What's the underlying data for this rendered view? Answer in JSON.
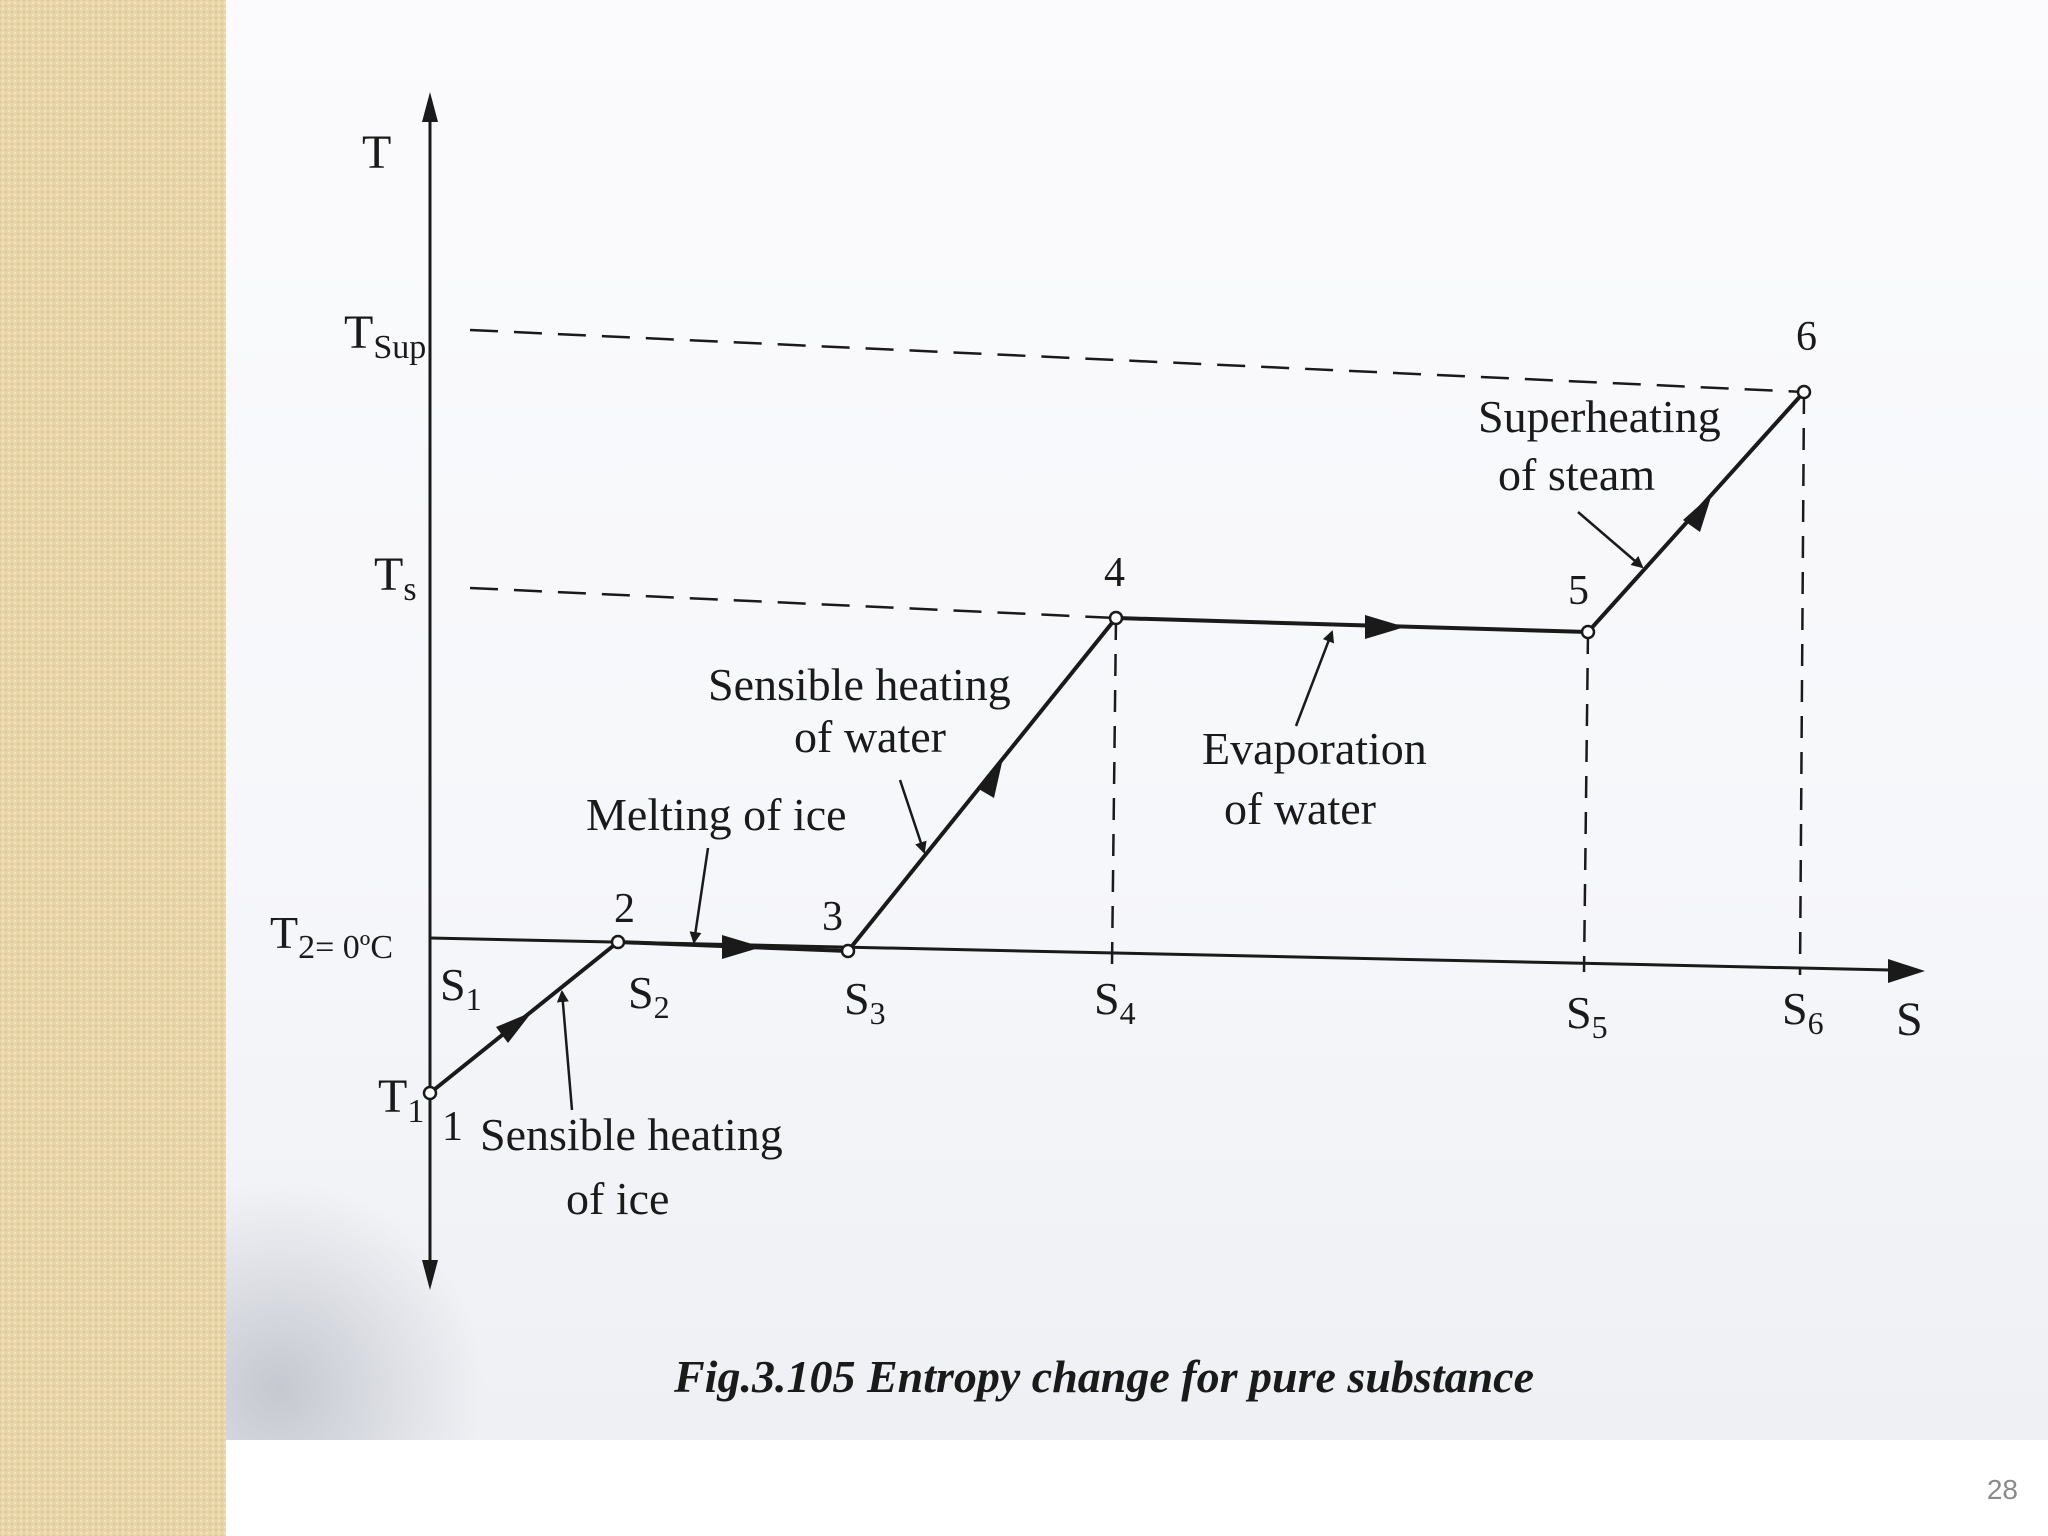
{
  "slide": {
    "page_number": "28",
    "caption": "Fig.3.105 Entropy change for pure substance"
  },
  "diagram": {
    "axes": {
      "y_label": "T",
      "x_label": "S"
    },
    "temperature_labels": {
      "t_sup": "Sup",
      "t_s": "s",
      "t_2": "2= 0ºC",
      "t_1": "1"
    },
    "points": [
      "1",
      "2",
      "3",
      "4",
      "5",
      "6"
    ],
    "entropy_labels": [
      "1",
      "2",
      "3",
      "4",
      "5",
      "6"
    ],
    "annotations": {
      "sensible_ice_line1": "Sensible heating",
      "sensible_ice_line2": "of ice",
      "melting": "Melting of ice",
      "sensible_water_line1": "Sensible heating",
      "sensible_water_line2": "of water",
      "evaporation_line1": "Evaporation",
      "evaporation_line2": "of water",
      "superheating_line1": "Superheating",
      "superheating_line2": "of steam"
    }
  },
  "colors": {
    "ink": "#1a1a1a",
    "side_strip": "#e9d6a8",
    "page_number": "#8a8a8a"
  }
}
